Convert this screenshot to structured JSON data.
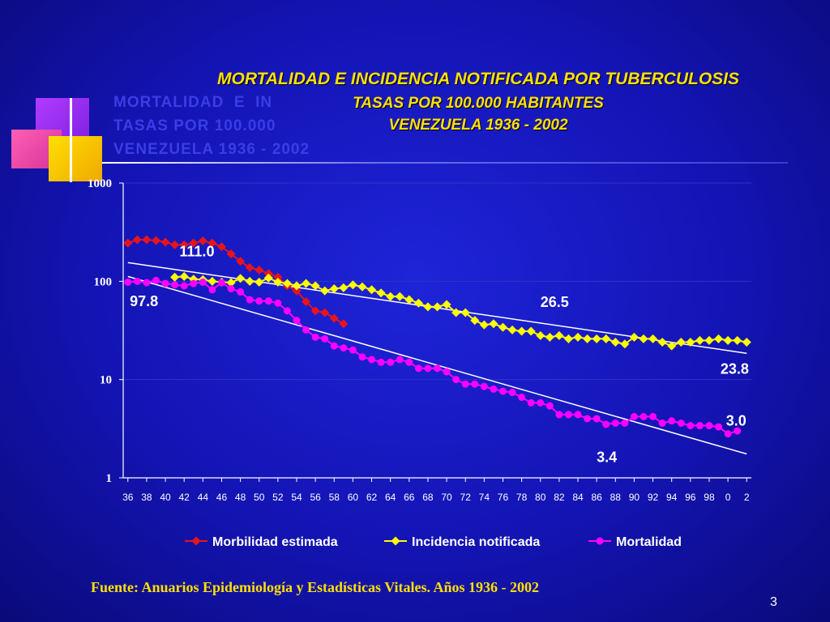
{
  "slide": {
    "page_number": "3",
    "source": "Fuente: Anuarios Epidemiología y Estadísticas Vitales. Años 1936 - 2002"
  },
  "colors": {
    "morbilidad": "#e8141c",
    "incidencia": "#ffff00",
    "mortalidad": "#ff00ff",
    "trend": "#ffffff",
    "title": "#ffe000"
  },
  "chart_data": {
    "type": "line",
    "title": "MORTALIDAD E INCIDENCIA NOTIFICADA POR TUBERCULOSIS",
    "subtitle": [
      "TASAS POR 100.000 HABITANTES",
      "VENEZUELA 1936 - 2002"
    ],
    "ghost_text": [
      "MORTALIDAD  E  IN",
      "TASAS POR 100.000",
      "VENEZUELA 1936 - 2002"
    ],
    "y_scale": "log",
    "ylim": [
      1,
      1000
    ],
    "y_ticks": [
      "1",
      "10",
      "100",
      "1000"
    ],
    "x_ticks": [
      "36",
      "38",
      "40",
      "42",
      "44",
      "46",
      "48",
      "50",
      "52",
      "54",
      "56",
      "58",
      "60",
      "62",
      "64",
      "66",
      "68",
      "70",
      "72",
      "74",
      "76",
      "78",
      "80",
      "82",
      "84",
      "86",
      "88",
      "90",
      "92",
      "94",
      "96",
      "98",
      "0",
      "2"
    ],
    "grid": "horizontal",
    "legend_position": "bottom",
    "series": [
      {
        "name": "Morbilidad estimada",
        "color": "#e8141c",
        "marker": "diamond",
        "x": [
          1936,
          1937,
          1938,
          1939,
          1940,
          1941,
          1942,
          1943,
          1944,
          1945,
          1946,
          1947,
          1948,
          1949,
          1950,
          1951,
          1952,
          1953,
          1954,
          1955,
          1956,
          1957,
          1958,
          1959
        ],
        "y": [
          245,
          265,
          265,
          260,
          250,
          235,
          235,
          245,
          258,
          245,
          225,
          190,
          160,
          138,
          130,
          120,
          110,
          90,
          80,
          62,
          50,
          48,
          42,
          37
        ]
      },
      {
        "name": "Incidencia notificada",
        "color": "#ffff00",
        "marker": "diamond",
        "x": [
          1941,
          1942,
          1943,
          1944,
          1945,
          1946,
          1947,
          1948,
          1949,
          1950,
          1951,
          1952,
          1953,
          1954,
          1955,
          1956,
          1957,
          1958,
          1959,
          1960,
          1961,
          1962,
          1963,
          1964,
          1965,
          1966,
          1967,
          1968,
          1969,
          1970,
          1971,
          1972,
          1973,
          1974,
          1975,
          1976,
          1977,
          1978,
          1979,
          1980,
          1981,
          1982,
          1983,
          1984,
          1985,
          1986,
          1987,
          1988,
          1989,
          1990,
          1991,
          1992,
          1993,
          1994,
          1995,
          1996,
          1997,
          1998,
          1999,
          2000,
          2001,
          2002
        ],
        "y": [
          110,
          112,
          105,
          104,
          100,
          98,
          97,
          107,
          100,
          98,
          108,
          98,
          95,
          90,
          95,
          90,
          80,
          84,
          86,
          92,
          88,
          82,
          76,
          70,
          70,
          65,
          60,
          55,
          55,
          58,
          48,
          48,
          40,
          36,
          37,
          34,
          32,
          31,
          31,
          28,
          27,
          28,
          26,
          27,
          26,
          26,
          26,
          24,
          23,
          27,
          26,
          26,
          24,
          22,
          24,
          24,
          25,
          25,
          26,
          25,
          25,
          24
        ]
      },
      {
        "name": "Mortalidad",
        "color": "#ff00ff",
        "marker": "circle",
        "x": [
          1936,
          1937,
          1938,
          1939,
          1940,
          1941,
          1942,
          1943,
          1944,
          1945,
          1946,
          1947,
          1948,
          1949,
          1950,
          1951,
          1952,
          1953,
          1954,
          1955,
          1956,
          1957,
          1958,
          1959,
          1960,
          1961,
          1962,
          1963,
          1964,
          1965,
          1966,
          1967,
          1968,
          1969,
          1970,
          1971,
          1972,
          1973,
          1974,
          1975,
          1976,
          1977,
          1978,
          1979,
          1980,
          1981,
          1982,
          1983,
          1984,
          1985,
          1986,
          1987,
          1988,
          1989,
          1990,
          1991,
          1992,
          1993,
          1994,
          1995,
          1996,
          1997,
          1998,
          1999,
          2000,
          2001
        ],
        "y": [
          98,
          100,
          97,
          102,
          95,
          92,
          90,
          95,
          98,
          82,
          97,
          84,
          78,
          65,
          63,
          63,
          60,
          50,
          40,
          32,
          27,
          26,
          22,
          21,
          20,
          17,
          16,
          15,
          15,
          16,
          15,
          13,
          13,
          13,
          12,
          10,
          9,
          9,
          8.5,
          8,
          7.6,
          7.4,
          6.6,
          5.8,
          5.8,
          5.4,
          4.4,
          4.4,
          4.4,
          4.0,
          4.0,
          3.5,
          3.6,
          3.6,
          4.2,
          4.2,
          4.2,
          3.6,
          3.8,
          3.6,
          3.4,
          3.4,
          3.4,
          3.3,
          2.8,
          3.0
        ]
      }
    ],
    "trendlines": [
      {
        "for": "Incidencia notificada",
        "x": [
          1936,
          2002
        ],
        "y": [
          155,
          18.5
        ]
      },
      {
        "for": "Mortalidad",
        "x": [
          1936,
          2002
        ],
        "y": [
          112,
          1.75
        ]
      }
    ],
    "annotations": [
      {
        "text": "111.0",
        "x": 1941.5,
        "y": 180
      },
      {
        "text": "97.8",
        "x": 1936.2,
        "y": 56
      },
      {
        "text": "26.5",
        "x": 1980.0,
        "y": 55
      },
      {
        "text": "23.8",
        "x": 1999.2,
        "y": 11.5
      },
      {
        "text": "3.0",
        "x": 1999.8,
        "y": 3.4
      },
      {
        "text": "3.4",
        "x": 1986.0,
        "y": 1.45
      }
    ]
  }
}
